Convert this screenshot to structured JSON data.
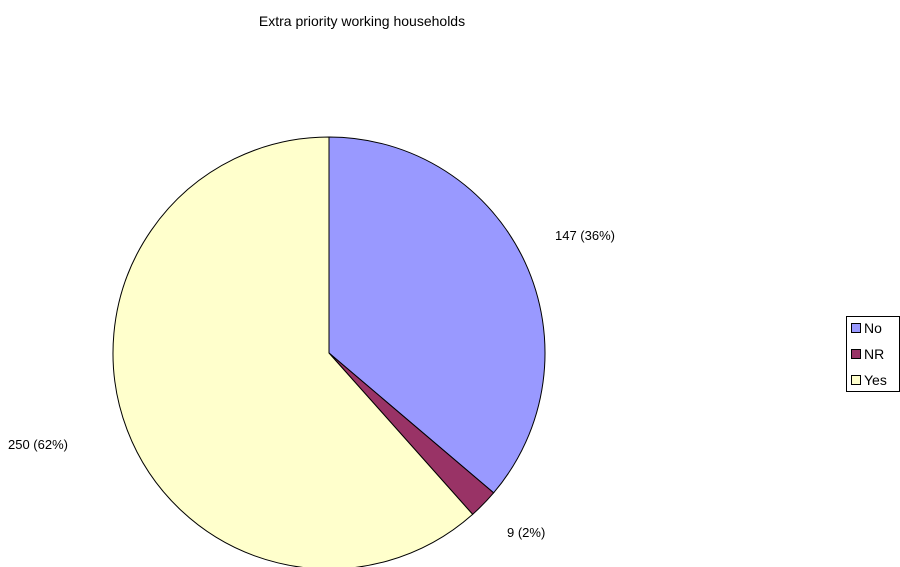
{
  "chart_data": {
    "type": "pie",
    "title": "Extra priority working households",
    "slices": [
      {
        "label": "No",
        "value": 147,
        "percent": 36,
        "display": "147 (36%)",
        "color": "#9999ff"
      },
      {
        "label": "NR",
        "value": 9,
        "percent": 2,
        "display": "9 (2%)",
        "color": "#993366"
      },
      {
        "label": "Yes",
        "value": 250,
        "percent": 62,
        "display": "250 (62%)",
        "color": "#ffffcc"
      }
    ],
    "legend": {
      "position": "right",
      "entries": [
        "No",
        "NR",
        "Yes"
      ]
    }
  }
}
